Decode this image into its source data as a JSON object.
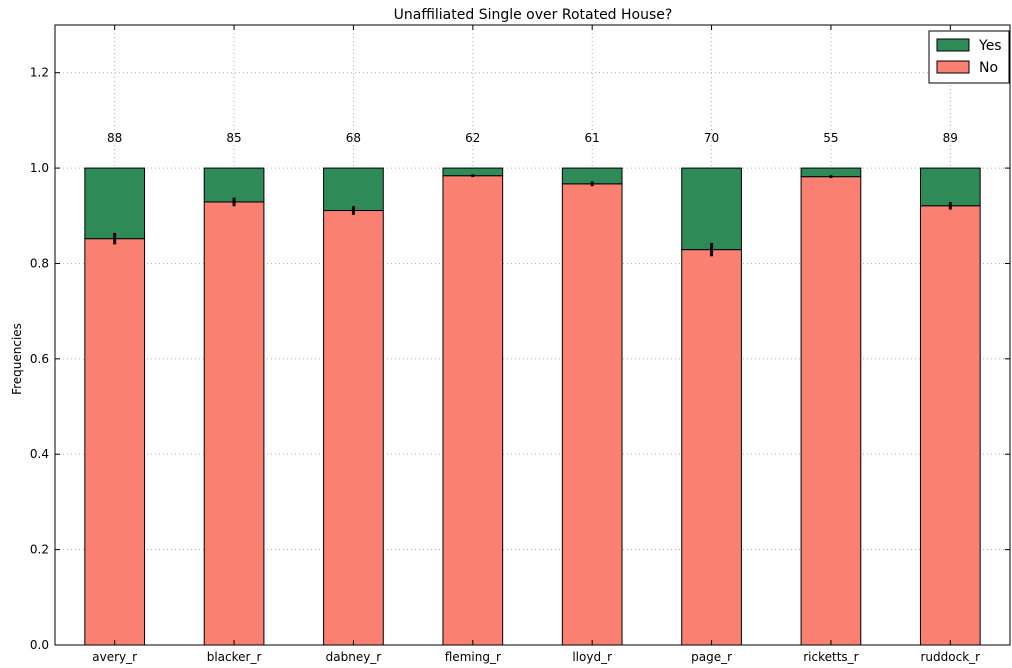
{
  "chart_data": {
    "type": "bar",
    "stacked": true,
    "title": "Unaffiliated Single over Rotated House?",
    "xlabel": "",
    "ylabel": "Frequencies",
    "ylim": [
      0,
      1.3
    ],
    "yticks": [
      "0.0",
      "0.2",
      "0.4",
      "0.6",
      "0.8",
      "1.0",
      "1.2"
    ],
    "grid": true,
    "legend_position": "top-right",
    "categories": [
      "avery_r",
      "blacker_r",
      "dabney_r",
      "fleming_r",
      "lloyd_r",
      "page_r",
      "ricketts_r",
      "ruddock_r"
    ],
    "counts": [
      "88",
      "85",
      "68",
      "62",
      "61",
      "70",
      "55",
      "89"
    ],
    "series": [
      {
        "name": "No",
        "color": "#fa8072",
        "values": [
          0.852,
          0.929,
          0.911,
          0.984,
          0.967,
          0.829,
          0.982,
          0.921
        ]
      },
      {
        "name": "Yes",
        "color": "#2e8b57",
        "values": [
          0.148,
          0.071,
          0.089,
          0.016,
          0.033,
          0.171,
          0.018,
          0.079
        ]
      }
    ],
    "error_bars": [
      0.012,
      0.009,
      0.009,
      0.003,
      0.005,
      0.014,
      0.003,
      0.008
    ]
  }
}
